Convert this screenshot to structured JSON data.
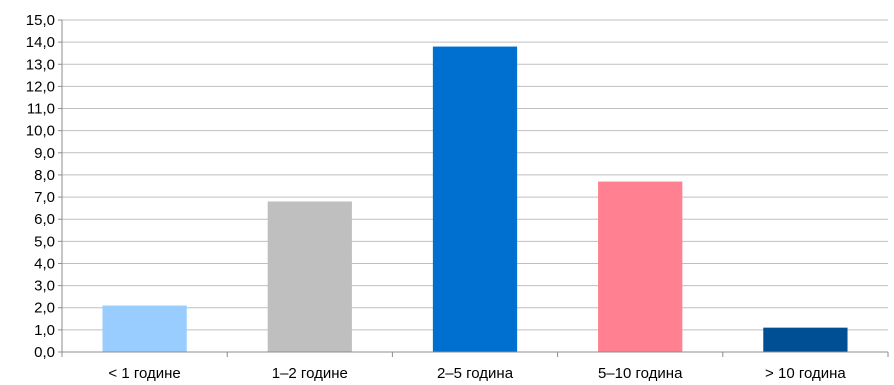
{
  "chart_data": {
    "type": "bar",
    "title": "",
    "xlabel": "",
    "ylabel": "",
    "categories": [
      "< 1 године",
      "1–2 године",
      "2–5 година",
      "5–10 година",
      "> 10 година"
    ],
    "values": [
      2.1,
      6.8,
      13.8,
      7.7,
      1.1
    ],
    "colors": [
      "#99ccff",
      "#bfbfbf",
      "#0070d0",
      "#ff8090",
      "#004f94"
    ],
    "ylim": [
      0,
      15
    ],
    "ytick_step": 1,
    "yticks": [
      "0,0",
      "1,0",
      "2,0",
      "3,0",
      "4,0",
      "5,0",
      "6,0",
      "7,0",
      "8,0",
      "9,0",
      "10,0",
      "11,0",
      "12,0",
      "13,0",
      "14,0",
      "15,0"
    ],
    "grid": true,
    "legend": "none"
  }
}
